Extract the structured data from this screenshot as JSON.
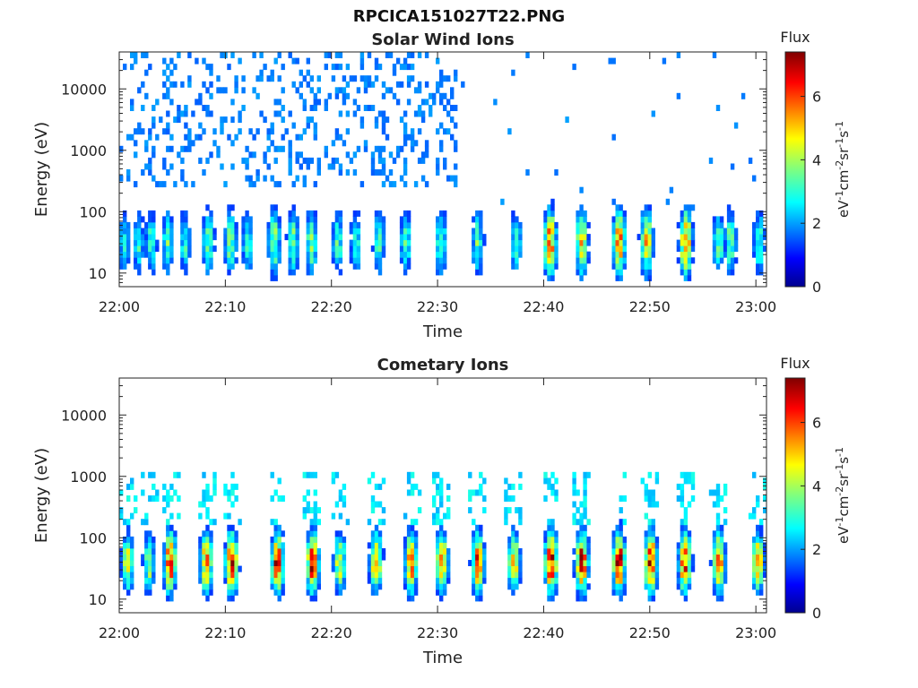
{
  "figure_title": "RPCICA151027T22.PNG",
  "colorbar": {
    "title": "Flux",
    "label": "eV-1cm-2sr-1s-1",
    "range": [
      0,
      7.4
    ],
    "ticks": [
      0,
      2,
      4,
      6
    ],
    "colormap": "jet"
  },
  "chart_data": [
    {
      "type": "heatmap",
      "title": "Solar Wind Ions",
      "xlabel": "Time",
      "ylabel": "Energy (eV)",
      "x_ticks": [
        "22:00",
        "22:10",
        "22:20",
        "22:30",
        "22:40",
        "22:50",
        "23:00"
      ],
      "y_ticks": [
        10,
        100,
        1000,
        10000
      ],
      "y_scale": "log",
      "ylim": [
        6,
        40000
      ],
      "xlim_minutes": [
        0,
        61
      ],
      "bursts": [
        {
          "t": 0.5,
          "level": 2.8
        },
        {
          "t": 1.8,
          "level": 3.0
        },
        {
          "t": 3.0,
          "level": 3.2
        },
        {
          "t": 4.6,
          "level": 3.4
        },
        {
          "t": 6.2,
          "level": 3.0
        },
        {
          "t": 8.4,
          "level": 3.5
        },
        {
          "t": 10.5,
          "level": 3.6
        },
        {
          "t": 12.1,
          "level": 3.2
        },
        {
          "t": 14.6,
          "level": 4.0
        },
        {
          "t": 16.4,
          "level": 3.6
        },
        {
          "t": 18.1,
          "level": 3.8
        },
        {
          "t": 20.6,
          "level": 3.2
        },
        {
          "t": 22.3,
          "level": 3.0
        },
        {
          "t": 24.5,
          "level": 3.3
        },
        {
          "t": 27.0,
          "level": 3.2
        },
        {
          "t": 30.3,
          "level": 3.6
        },
        {
          "t": 33.8,
          "level": 3.4
        },
        {
          "t": 37.4,
          "level": 3.0
        },
        {
          "t": 40.6,
          "level": 5.8
        },
        {
          "t": 43.6,
          "level": 4.8
        },
        {
          "t": 47.1,
          "level": 5.6
        },
        {
          "t": 49.7,
          "level": 5.0
        },
        {
          "t": 53.4,
          "level": 5.8
        },
        {
          "t": 56.5,
          "level": 3.4
        },
        {
          "t": 57.6,
          "level": 3.6
        },
        {
          "t": 60.3,
          "level": 3.3
        }
      ]
    },
    {
      "type": "heatmap",
      "title": "Cometary Ions",
      "xlabel": "Time",
      "ylabel": "Energy (eV)",
      "x_ticks": [
        "22:00",
        "22:10",
        "22:20",
        "22:30",
        "22:40",
        "22:50",
        "23:00"
      ],
      "y_ticks": [
        10,
        100,
        1000,
        10000
      ],
      "y_scale": "log",
      "ylim": [
        6,
        40000
      ],
      "xlim_minutes": [
        0,
        61
      ],
      "bursts": [
        {
          "t": 0.8,
          "level": 4.4
        },
        {
          "t": 2.8,
          "level": 4.0
        },
        {
          "t": 4.8,
          "level": 6.2
        },
        {
          "t": 8.2,
          "level": 5.6
        },
        {
          "t": 10.6,
          "level": 6.4
        },
        {
          "t": 14.9,
          "level": 6.4
        },
        {
          "t": 18.2,
          "level": 6.4
        },
        {
          "t": 20.8,
          "level": 4.6
        },
        {
          "t": 24.2,
          "level": 5.4
        },
        {
          "t": 27.5,
          "level": 5.8
        },
        {
          "t": 30.4,
          "level": 5.4
        },
        {
          "t": 33.8,
          "level": 6.0
        },
        {
          "t": 37.2,
          "level": 5.0
        },
        {
          "t": 40.7,
          "level": 6.8
        },
        {
          "t": 43.6,
          "level": 6.6
        },
        {
          "t": 47.1,
          "level": 6.8
        },
        {
          "t": 50.1,
          "level": 6.8
        },
        {
          "t": 53.3,
          "level": 6.2
        },
        {
          "t": 56.5,
          "level": 6.0
        },
        {
          "t": 60.2,
          "level": 5.4
        }
      ]
    }
  ]
}
